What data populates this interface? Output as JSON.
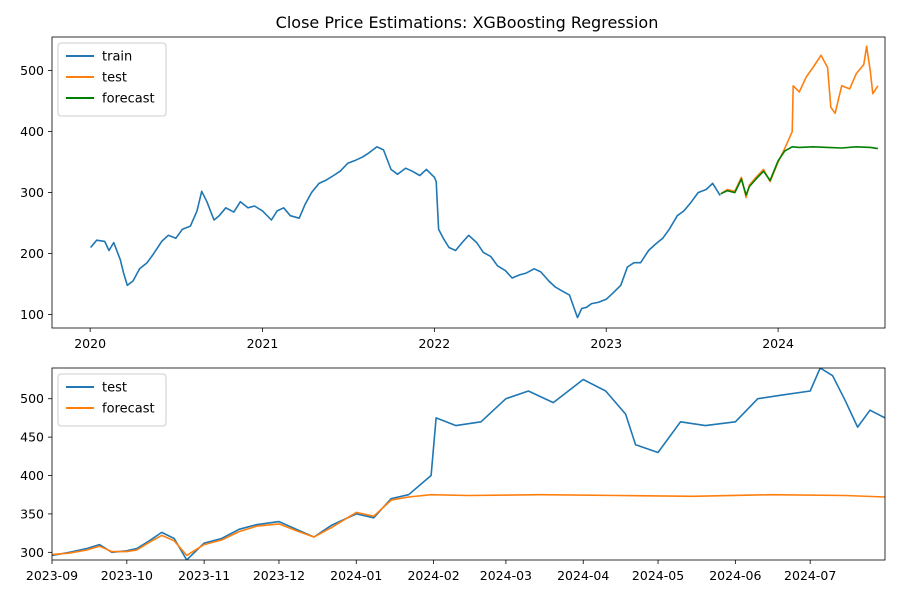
{
  "chart_data": [
    {
      "type": "line",
      "title": "Close Price Estimations: XGBoosting Regression",
      "xlabel": "",
      "ylabel": "",
      "x_ticks": [
        "2020",
        "2021",
        "2022",
        "2023",
        "2024"
      ],
      "y_ticks": [
        100,
        200,
        300,
        400,
        500
      ],
      "xlim": [
        "2019-10-12",
        "2024-08-15"
      ],
      "ylim": [
        78,
        555
      ],
      "legend": "top-left",
      "grid": false,
      "series": [
        {
          "name": "train",
          "color": "#1f77b4",
          "points": [
            [
              "2020-01-02",
              210
            ],
            [
              "2020-01-15",
              222
            ],
            [
              "2020-02-01",
              220
            ],
            [
              "2020-02-10",
              205
            ],
            [
              "2020-02-20",
              218
            ],
            [
              "2020-03-05",
              190
            ],
            [
              "2020-03-12",
              168
            ],
            [
              "2020-03-20",
              148
            ],
            [
              "2020-04-01",
              155
            ],
            [
              "2020-04-15",
              175
            ],
            [
              "2020-05-01",
              185
            ],
            [
              "2020-05-15",
              200
            ],
            [
              "2020-06-01",
              220
            ],
            [
              "2020-06-15",
              230
            ],
            [
              "2020-07-01",
              225
            ],
            [
              "2020-07-15",
              240
            ],
            [
              "2020-08-01",
              245
            ],
            [
              "2020-08-15",
              270
            ],
            [
              "2020-08-25",
              302
            ],
            [
              "2020-09-05",
              285
            ],
            [
              "2020-09-20",
              255
            ],
            [
              "2020-10-01",
              262
            ],
            [
              "2020-10-15",
              275
            ],
            [
              "2020-11-01",
              268
            ],
            [
              "2020-11-15",
              285
            ],
            [
              "2020-12-01",
              275
            ],
            [
              "2020-12-15",
              278
            ],
            [
              "2021-01-01",
              270
            ],
            [
              "2021-01-20",
              255
            ],
            [
              "2021-02-01",
              270
            ],
            [
              "2021-02-15",
              275
            ],
            [
              "2021-03-01",
              262
            ],
            [
              "2021-03-20",
              258
            ],
            [
              "2021-04-01",
              280
            ],
            [
              "2021-04-15",
              300
            ],
            [
              "2021-05-01",
              315
            ],
            [
              "2021-05-15",
              320
            ],
            [
              "2021-06-01",
              328
            ],
            [
              "2021-06-15",
              335
            ],
            [
              "2021-07-01",
              348
            ],
            [
              "2021-07-15",
              352
            ],
            [
              "2021-08-01",
              358
            ],
            [
              "2021-08-15",
              365
            ],
            [
              "2021-09-01",
              375
            ],
            [
              "2021-09-15",
              370
            ],
            [
              "2021-10-01",
              338
            ],
            [
              "2021-10-15",
              330
            ],
            [
              "2021-11-01",
              340
            ],
            [
              "2021-11-15",
              335
            ],
            [
              "2021-12-01",
              328
            ],
            [
              "2021-12-15",
              338
            ],
            [
              "2022-01-01",
              325
            ],
            [
              "2022-01-05",
              318
            ],
            [
              "2022-01-10",
              240
            ],
            [
              "2022-01-20",
              225
            ],
            [
              "2022-02-01",
              210
            ],
            [
              "2022-02-15",
              205
            ],
            [
              "2022-03-01",
              218
            ],
            [
              "2022-03-15",
              230
            ],
            [
              "2022-04-01",
              218
            ],
            [
              "2022-04-15",
              202
            ],
            [
              "2022-05-01",
              195
            ],
            [
              "2022-05-15",
              180
            ],
            [
              "2022-06-01",
              172
            ],
            [
              "2022-06-15",
              160
            ],
            [
              "2022-07-01",
              165
            ],
            [
              "2022-07-15",
              168
            ],
            [
              "2022-08-01",
              175
            ],
            [
              "2022-08-15",
              170
            ],
            [
              "2022-09-01",
              155
            ],
            [
              "2022-09-15",
              145
            ],
            [
              "2022-10-01",
              138
            ],
            [
              "2022-10-15",
              132
            ],
            [
              "2022-11-01",
              95
            ],
            [
              "2022-11-10",
              110
            ],
            [
              "2022-11-20",
              112
            ],
            [
              "2022-12-01",
              118
            ],
            [
              "2022-12-15",
              120
            ],
            [
              "2023-01-01",
              125
            ],
            [
              "2023-01-15",
              135
            ],
            [
              "2023-02-01",
              148
            ],
            [
              "2023-02-15",
              178
            ],
            [
              "2023-03-01",
              185
            ],
            [
              "2023-03-15",
              185
            ],
            [
              "2023-04-01",
              205
            ],
            [
              "2023-04-15",
              215
            ],
            [
              "2023-05-01",
              225
            ],
            [
              "2023-05-15",
              240
            ],
            [
              "2023-06-01",
              262
            ],
            [
              "2023-06-15",
              270
            ],
            [
              "2023-07-01",
              285
            ],
            [
              "2023-07-15",
              300
            ],
            [
              "2023-08-01",
              305
            ],
            [
              "2023-08-15",
              315
            ],
            [
              "2023-08-31",
              295
            ]
          ]
        },
        {
          "name": "test",
          "color": "#ff7f0e",
          "points": [
            [
              "2023-09-01",
              298
            ],
            [
              "2023-09-15",
              305
            ],
            [
              "2023-10-01",
              302
            ],
            [
              "2023-10-15",
              325
            ],
            [
              "2023-10-25",
              292
            ],
            [
              "2023-11-01",
              312
            ],
            [
              "2023-11-15",
              325
            ],
            [
              "2023-12-01",
              338
            ],
            [
              "2023-12-15",
              318
            ],
            [
              "2024-01-01",
              350
            ],
            [
              "2024-01-15",
              372
            ],
            [
              "2024-01-31",
              400
            ],
            [
              "2024-02-02",
              475
            ],
            [
              "2024-02-15",
              465
            ],
            [
              "2024-03-01",
              490
            ],
            [
              "2024-03-15",
              505
            ],
            [
              "2024-04-01",
              525
            ],
            [
              "2024-04-15",
              505
            ],
            [
              "2024-04-22",
              440
            ],
            [
              "2024-05-01",
              430
            ],
            [
              "2024-05-15",
              475
            ],
            [
              "2024-06-01",
              470
            ],
            [
              "2024-06-15",
              495
            ],
            [
              "2024-07-01",
              510
            ],
            [
              "2024-07-07",
              540
            ],
            [
              "2024-07-15",
              498
            ],
            [
              "2024-07-20",
              462
            ],
            [
              "2024-07-31",
              475
            ]
          ]
        },
        {
          "name": "forecast",
          "color": "#008000",
          "points": [
            [
              "2023-09-01",
              298
            ],
            [
              "2023-09-15",
              303
            ],
            [
              "2023-10-01",
              300
            ],
            [
              "2023-10-15",
              322
            ],
            [
              "2023-10-25",
              296
            ],
            [
              "2023-11-01",
              310
            ],
            [
              "2023-11-15",
              322
            ],
            [
              "2023-12-01",
              335
            ],
            [
              "2023-12-15",
              320
            ],
            [
              "2024-01-01",
              352
            ],
            [
              "2024-01-15",
              368
            ],
            [
              "2024-01-31",
              375
            ],
            [
              "2024-02-15",
              374
            ],
            [
              "2024-03-15",
              375
            ],
            [
              "2024-04-15",
              374
            ],
            [
              "2024-05-15",
              373
            ],
            [
              "2024-06-15",
              375
            ],
            [
              "2024-07-15",
              374
            ],
            [
              "2024-07-31",
              372
            ]
          ]
        }
      ]
    },
    {
      "type": "line",
      "title": "",
      "xlabel": "",
      "ylabel": "",
      "x_ticks": [
        "2023-09",
        "2023-10",
        "2023-11",
        "2023-12",
        "2024-01",
        "2024-02",
        "2024-03",
        "2024-04",
        "2024-05",
        "2024-06",
        "2024-07"
      ],
      "y_ticks": [
        300,
        350,
        400,
        450,
        500
      ],
      "xlim": [
        "2023-09-01",
        "2024-07-31"
      ],
      "ylim": [
        290,
        540
      ],
      "legend": "top-left",
      "grid": false,
      "series": [
        {
          "name": "test",
          "color": "#1f77b4",
          "points": [
            [
              "2023-09-01",
              296
            ],
            [
              "2023-09-08",
              300
            ],
            [
              "2023-09-15",
              305
            ],
            [
              "2023-09-20",
              310
            ],
            [
              "2023-09-25",
              300
            ],
            [
              "2023-10-01",
              302
            ],
            [
              "2023-10-05",
              305
            ],
            [
              "2023-10-10",
              315
            ],
            [
              "2023-10-15",
              326
            ],
            [
              "2023-10-20",
              318
            ],
            [
              "2023-10-25",
              290
            ],
            [
              "2023-11-01",
              312
            ],
            [
              "2023-11-08",
              318
            ],
            [
              "2023-11-15",
              330
            ],
            [
              "2023-11-22",
              336
            ],
            [
              "2023-12-01",
              340
            ],
            [
              "2023-12-08",
              330
            ],
            [
              "2023-12-15",
              320
            ],
            [
              "2023-12-22",
              335
            ],
            [
              "2024-01-01",
              350
            ],
            [
              "2024-01-08",
              345
            ],
            [
              "2024-01-15",
              370
            ],
            [
              "2024-01-22",
              375
            ],
            [
              "2024-01-31",
              400
            ],
            [
              "2024-02-02",
              475
            ],
            [
              "2024-02-10",
              465
            ],
            [
              "2024-02-20",
              470
            ],
            [
              "2024-03-01",
              500
            ],
            [
              "2024-03-10",
              510
            ],
            [
              "2024-03-20",
              495
            ],
            [
              "2024-04-01",
              525
            ],
            [
              "2024-04-10",
              510
            ],
            [
              "2024-04-18",
              480
            ],
            [
              "2024-04-22",
              440
            ],
            [
              "2024-05-01",
              430
            ],
            [
              "2024-05-10",
              470
            ],
            [
              "2024-05-20",
              465
            ],
            [
              "2024-06-01",
              470
            ],
            [
              "2024-06-10",
              500
            ],
            [
              "2024-06-20",
              505
            ],
            [
              "2024-07-01",
              510
            ],
            [
              "2024-07-05",
              540
            ],
            [
              "2024-07-10",
              530
            ],
            [
              "2024-07-15",
              498
            ],
            [
              "2024-07-20",
              463
            ],
            [
              "2024-07-25",
              485
            ],
            [
              "2024-07-31",
              475
            ]
          ]
        },
        {
          "name": "forecast",
          "color": "#ff7f0e",
          "points": [
            [
              "2023-09-01",
              297
            ],
            [
              "2023-09-08",
              299
            ],
            [
              "2023-09-15",
              303
            ],
            [
              "2023-09-20",
              308
            ],
            [
              "2023-09-25",
              301
            ],
            [
              "2023-10-01",
              301
            ],
            [
              "2023-10-05",
              303
            ],
            [
              "2023-10-10",
              313
            ],
            [
              "2023-10-15",
              322
            ],
            [
              "2023-10-20",
              315
            ],
            [
              "2023-10-25",
              296
            ],
            [
              "2023-11-01",
              310
            ],
            [
              "2023-11-08",
              316
            ],
            [
              "2023-11-15",
              327
            ],
            [
              "2023-11-22",
              334
            ],
            [
              "2023-12-01",
              337
            ],
            [
              "2023-12-08",
              328
            ],
            [
              "2023-12-15",
              320
            ],
            [
              "2023-12-22",
              332
            ],
            [
              "2024-01-01",
              352
            ],
            [
              "2024-01-08",
              347
            ],
            [
              "2024-01-15",
              368
            ],
            [
              "2024-01-22",
              372
            ],
            [
              "2024-01-31",
              375
            ],
            [
              "2024-02-15",
              374
            ],
            [
              "2024-03-15",
              375
            ],
            [
              "2024-04-15",
              374
            ],
            [
              "2024-05-15",
              373
            ],
            [
              "2024-06-15",
              375
            ],
            [
              "2024-07-15",
              374
            ],
            [
              "2024-07-31",
              372
            ]
          ]
        }
      ]
    }
  ]
}
